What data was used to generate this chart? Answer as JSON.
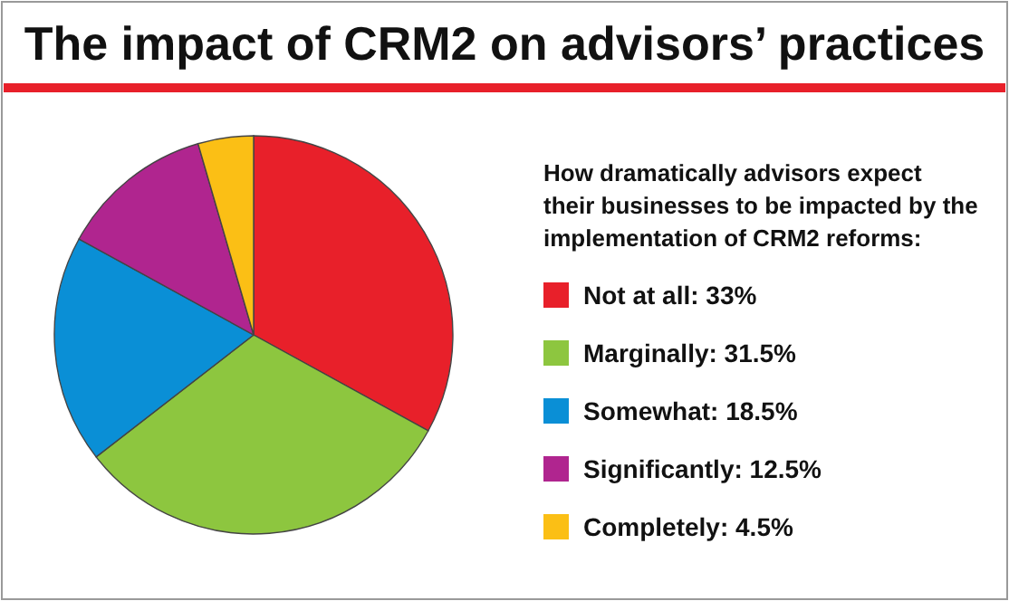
{
  "chart_data": {
    "type": "pie",
    "title": "The impact of CRM2 on advisors’ practices",
    "legend_title": "How dramatically advisors expect\ntheir businesses to be impacted by the\nimplementation of CRM2 reforms:",
    "categories": [
      "Not at all: 33%",
      "Marginally: 31.5%",
      "Somewhat: 18.5%",
      "Significantly: 12.5%",
      "Completely: 4.5%"
    ],
    "values": [
      33,
      31.5,
      18.5,
      12.5,
      4.5
    ],
    "colors": [
      "#e8202a",
      "#8dc63f",
      "#0a8fd6",
      "#b0258f",
      "#fbbf15"
    ],
    "legend": "right"
  }
}
